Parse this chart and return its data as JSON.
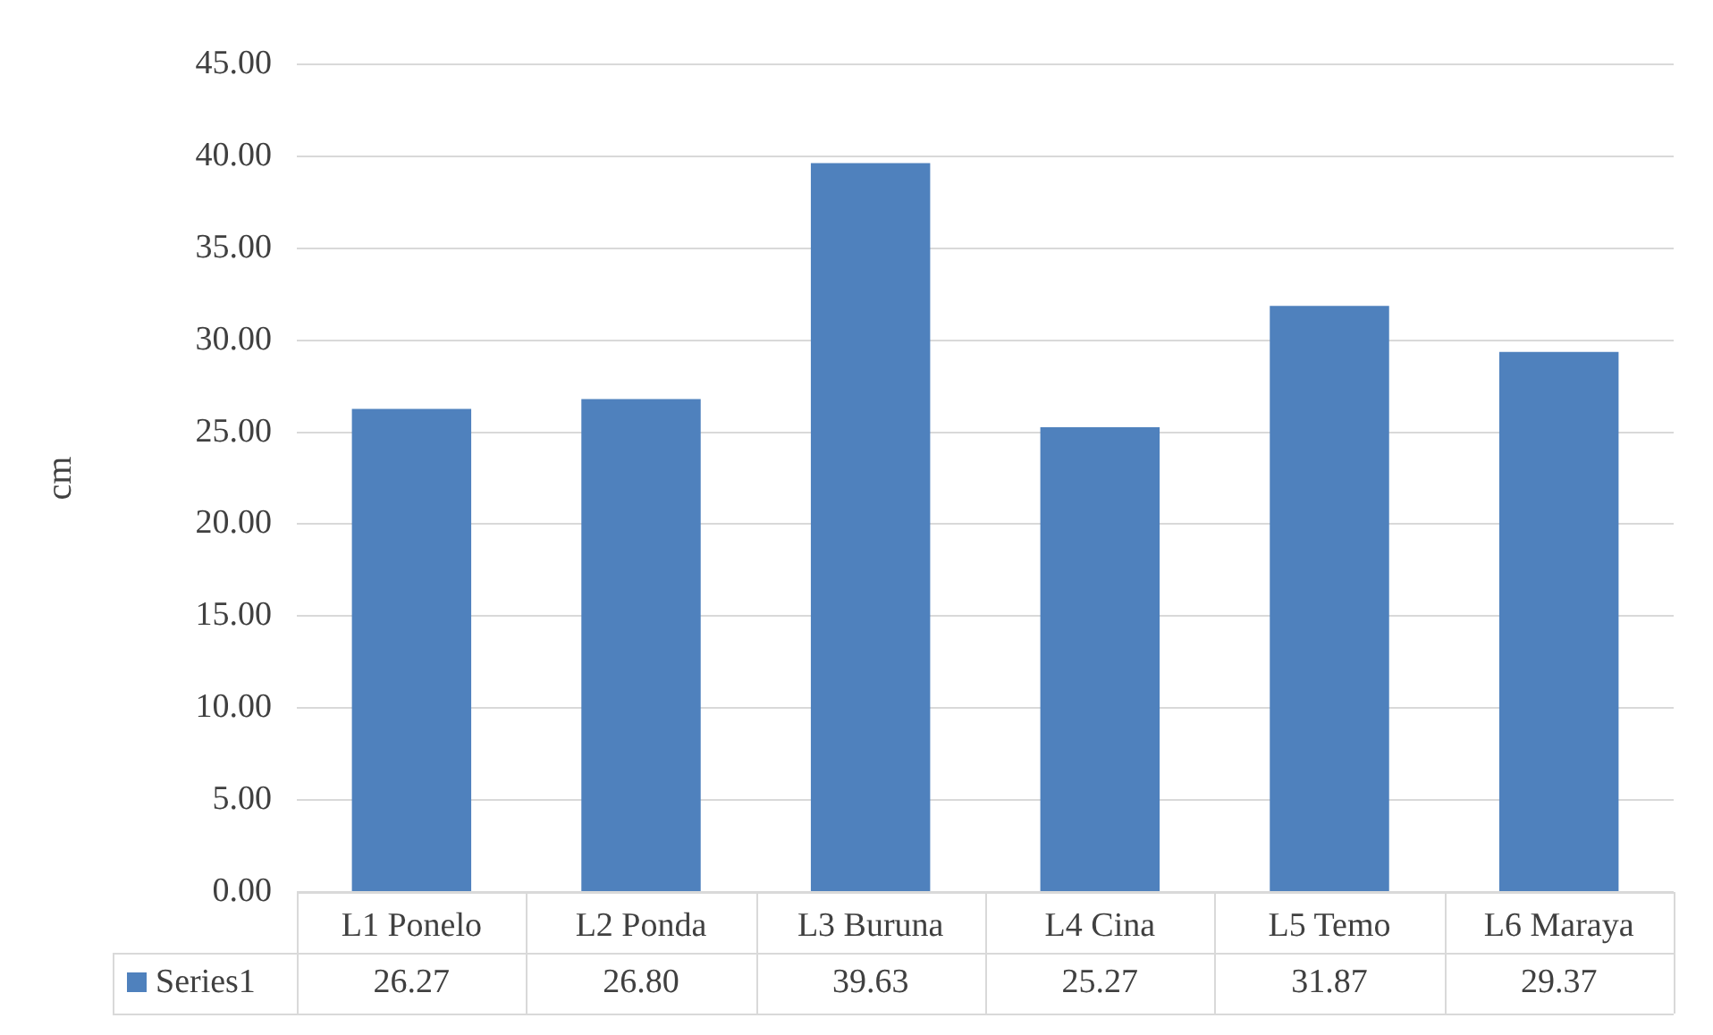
{
  "chart_data": {
    "type": "bar",
    "ylabel": "cm",
    "categories": [
      "L1 Ponelo",
      "L2 Ponda",
      "L3 Buruna",
      "L4 Cina",
      "L5 Temo",
      "L6 Maraya"
    ],
    "series": [
      {
        "name": "Series1",
        "color": "#4f81bd",
        "values": [
          26.27,
          26.8,
          39.63,
          25.27,
          31.87,
          29.37
        ],
        "value_labels": [
          "26.27",
          "26.80",
          "39.63",
          "25.27",
          "31.87",
          "29.37"
        ]
      }
    ],
    "ylim": [
      0,
      45
    ],
    "yticks": [
      {
        "value": 0,
        "label": "0.00"
      },
      {
        "value": 5,
        "label": "5.00"
      },
      {
        "value": 10,
        "label": "10.00"
      },
      {
        "value": 15,
        "label": "15.00"
      },
      {
        "value": 20,
        "label": "20.00"
      },
      {
        "value": 25,
        "label": "25.00"
      },
      {
        "value": 30,
        "label": "30.00"
      },
      {
        "value": 35,
        "label": "35.00"
      },
      {
        "value": 40,
        "label": "40.00"
      },
      {
        "value": 45,
        "label": "45.00"
      }
    ],
    "grid": "y",
    "legend": "bottom"
  }
}
